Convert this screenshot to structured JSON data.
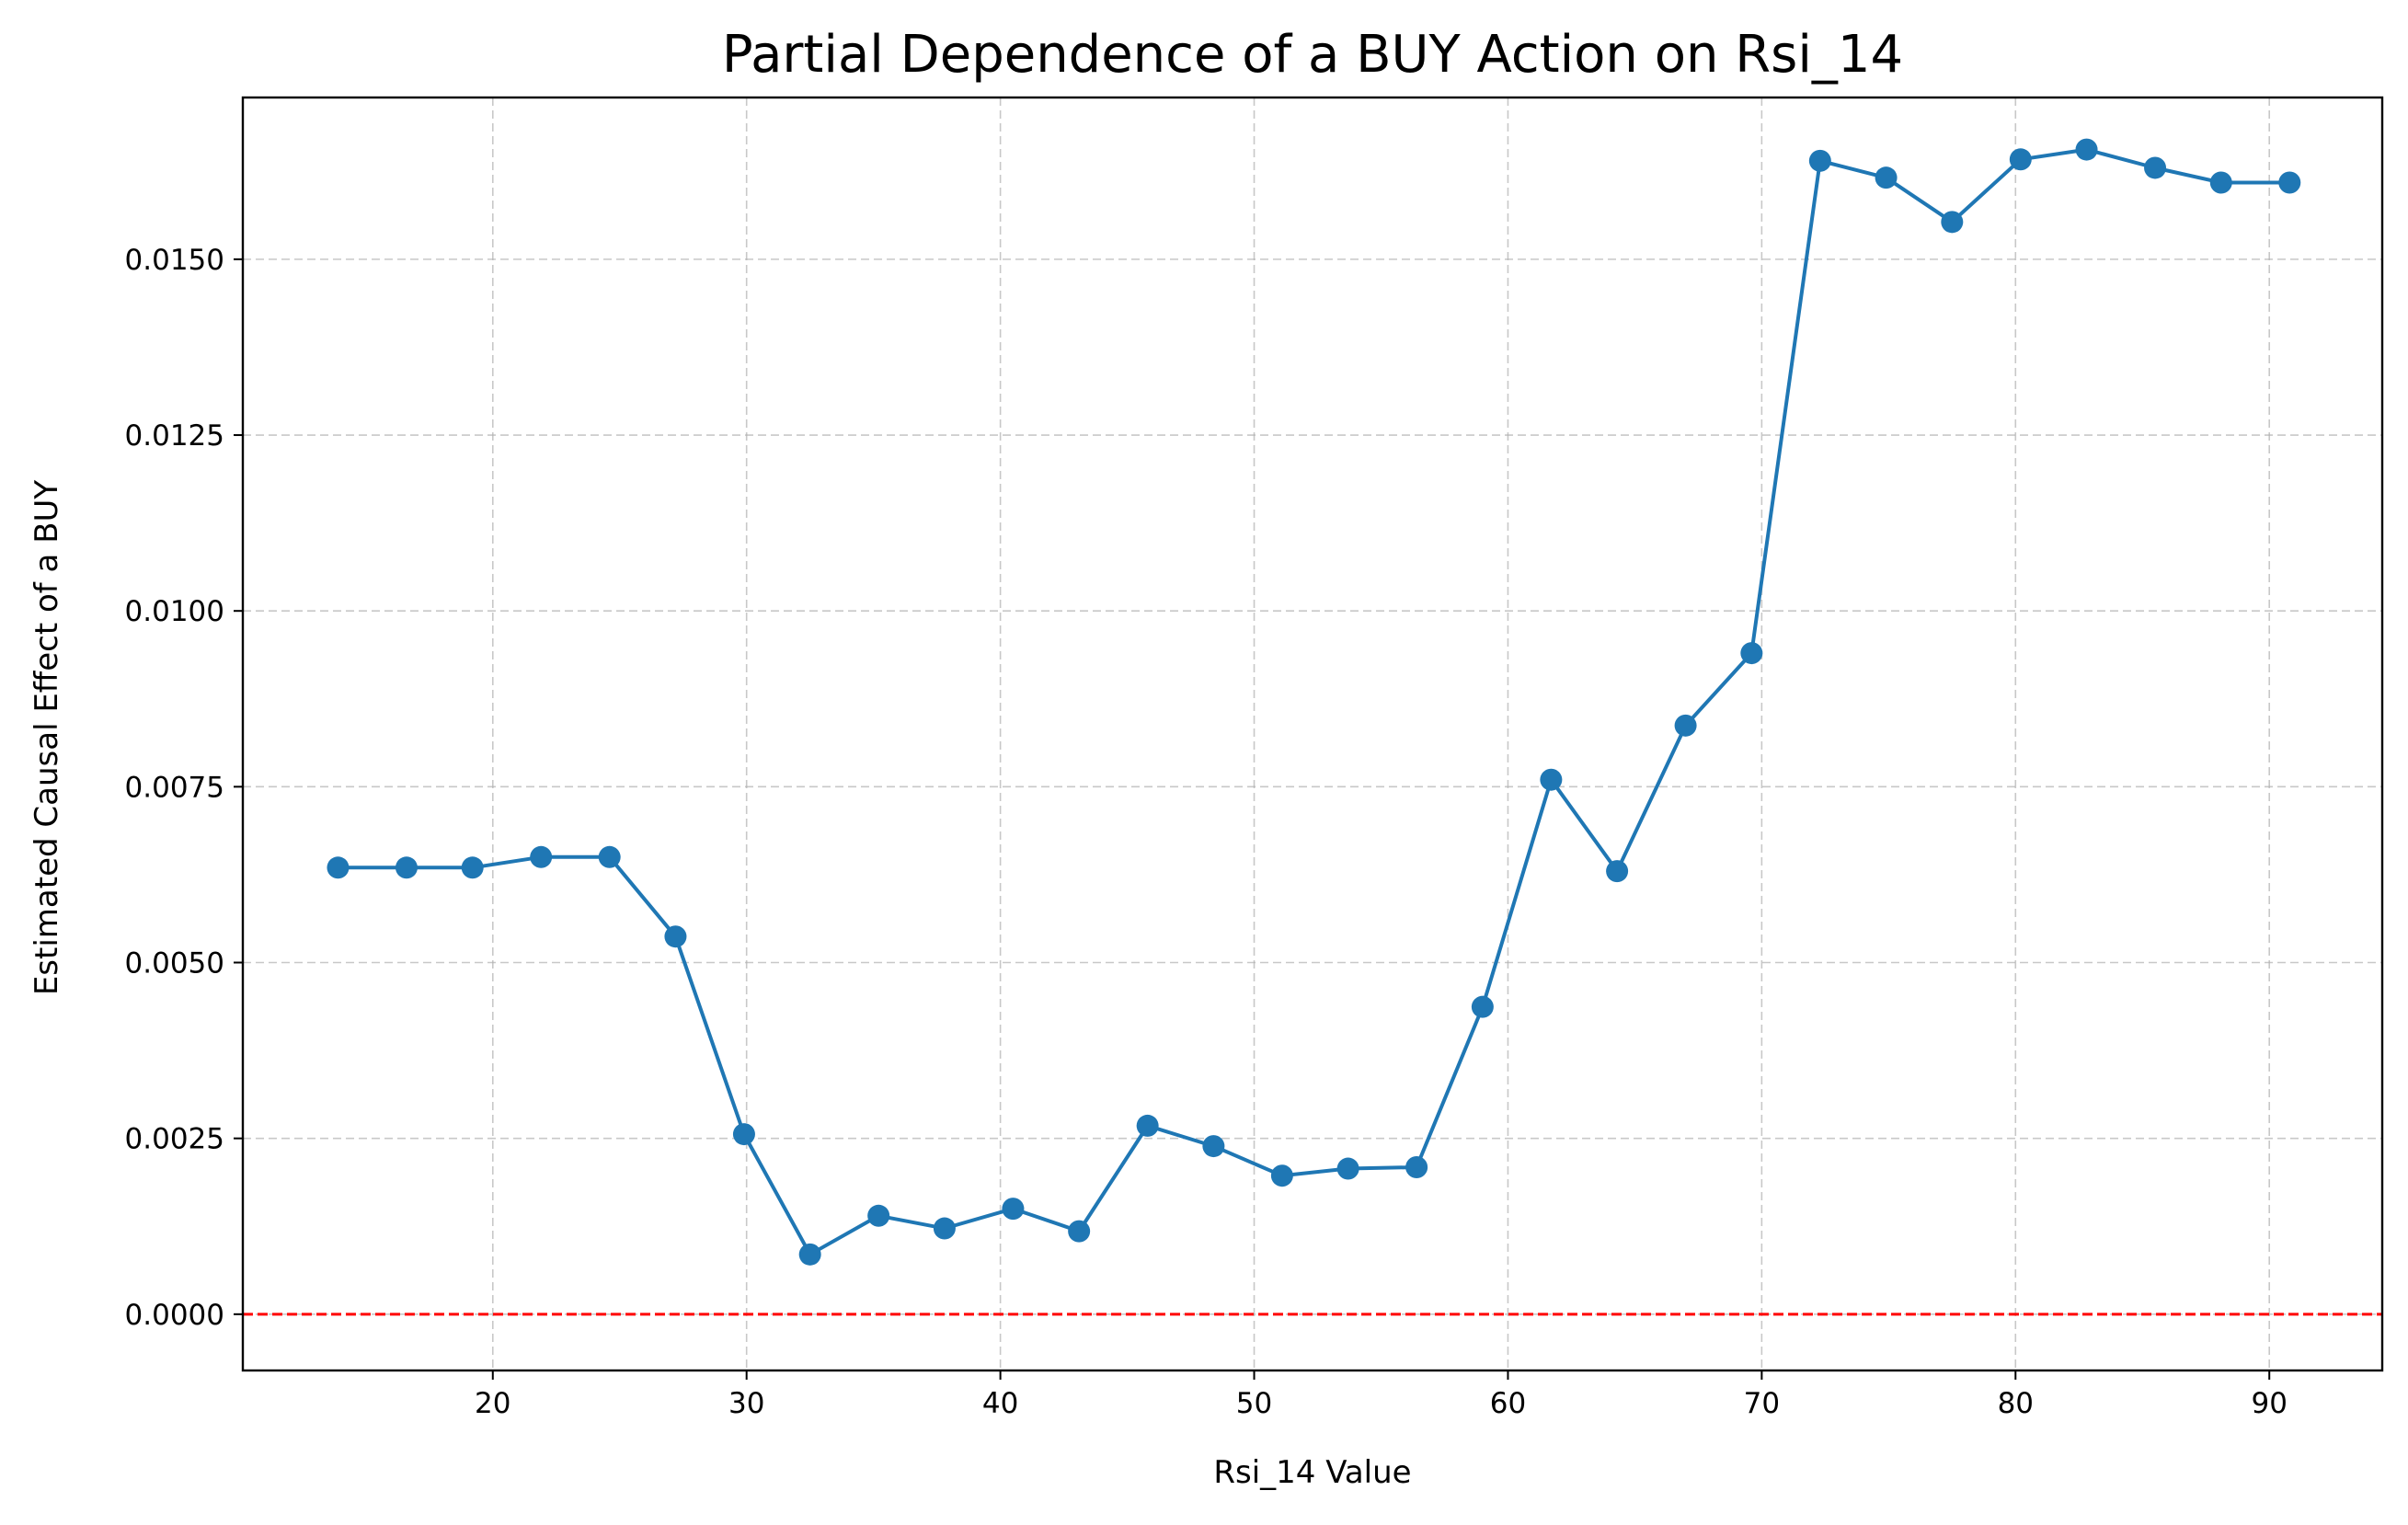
{
  "chart_data": {
    "type": "line",
    "title": "Partial Dependence of a BUY Action on Rsi_14",
    "xlabel": "Rsi_14 Value",
    "ylabel": "Estimated Causal Effect of a BUY",
    "xlim": [
      10.15,
      94.45
    ],
    "ylim": [
      -0.0008,
      0.0173
    ],
    "xticks": [
      20,
      30,
      40,
      50,
      60,
      70,
      80,
      90
    ],
    "yticks": [
      0.0,
      0.0025,
      0.005,
      0.0075,
      0.01,
      0.0125,
      0.015
    ],
    "ytick_labels": [
      "0.0000",
      "0.0025",
      "0.0050",
      "0.0075",
      "0.0100",
      "0.0125",
      "0.0150"
    ],
    "grid": true,
    "series": [
      {
        "color": "#1f77b4",
        "marker": "circle",
        "x": [
          13.9,
          16.6,
          19.2,
          21.9,
          24.6,
          27.2,
          29.9,
          32.5,
          35.2,
          37.8,
          40.5,
          43.1,
          45.8,
          48.4,
          51.1,
          53.7,
          56.4,
          59.0,
          61.7,
          64.3,
          67.0,
          69.6,
          72.3,
          74.9,
          77.5,
          80.2,
          82.8,
          85.5,
          88.1,
          90.8
        ],
        "y": [
          0.00635,
          0.00635,
          0.00635,
          0.0065,
          0.0065,
          0.00537,
          0.00256,
          0.00085,
          0.0014,
          0.00122,
          0.0015,
          0.00118,
          0.00268,
          0.00239,
          0.00197,
          0.00207,
          0.00209,
          0.00437,
          0.0076,
          0.0063,
          0.00837,
          0.0094,
          0.0164,
          0.01616,
          0.01553,
          0.01642,
          0.01656,
          0.0163,
          0.01609,
          0.01609
        ]
      }
    ],
    "reference_line": {
      "y": 0.0,
      "color": "#ff0000",
      "style": "dashed"
    }
  }
}
